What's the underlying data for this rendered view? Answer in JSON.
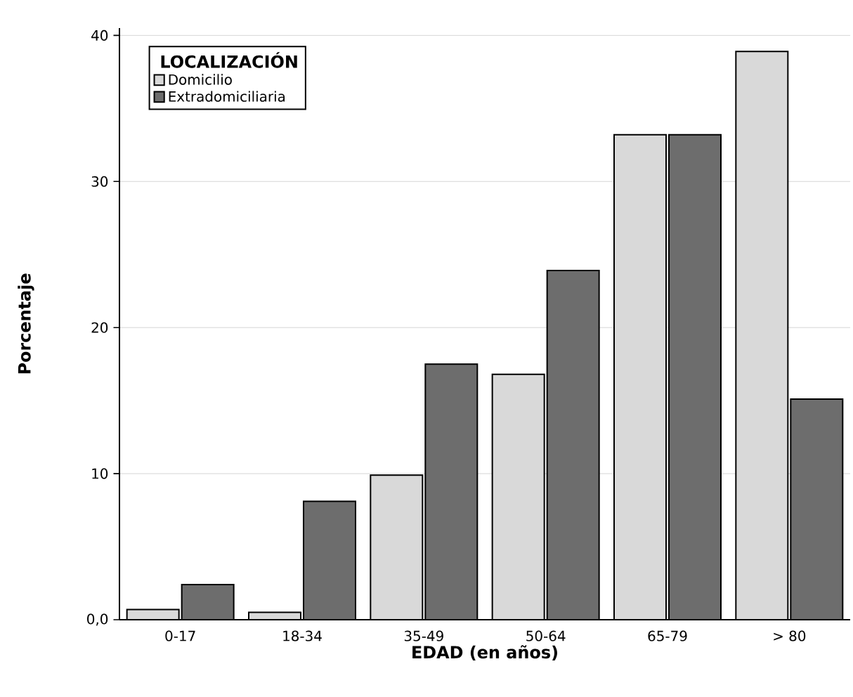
{
  "chart_data": {
    "type": "bar",
    "xlabel": "EDAD (en años)",
    "ylabel": "Porcentaje",
    "legend_title": "LOCALIZACIÓN",
    "categories": [
      "0-17",
      "18-34",
      "35-49",
      "50-64",
      "65-79",
      "> 80"
    ],
    "series": [
      {
        "name": "Domicilio",
        "color": "#d9d9d9",
        "values": [
          0.7,
          0.5,
          9.9,
          16.8,
          33.2,
          38.9
        ]
      },
      {
        "name": "Extradomiciliaria",
        "color": "#6d6d6d",
        "values": [
          2.4,
          8.1,
          17.5,
          23.9,
          33.2,
          15.1
        ]
      }
    ],
    "ylim": [
      0,
      40.5
    ],
    "yticks": [
      {
        "value": 0,
        "label": "0,0"
      },
      10,
      20,
      30,
      40
    ],
    "grid": "y",
    "legend": "top left"
  }
}
